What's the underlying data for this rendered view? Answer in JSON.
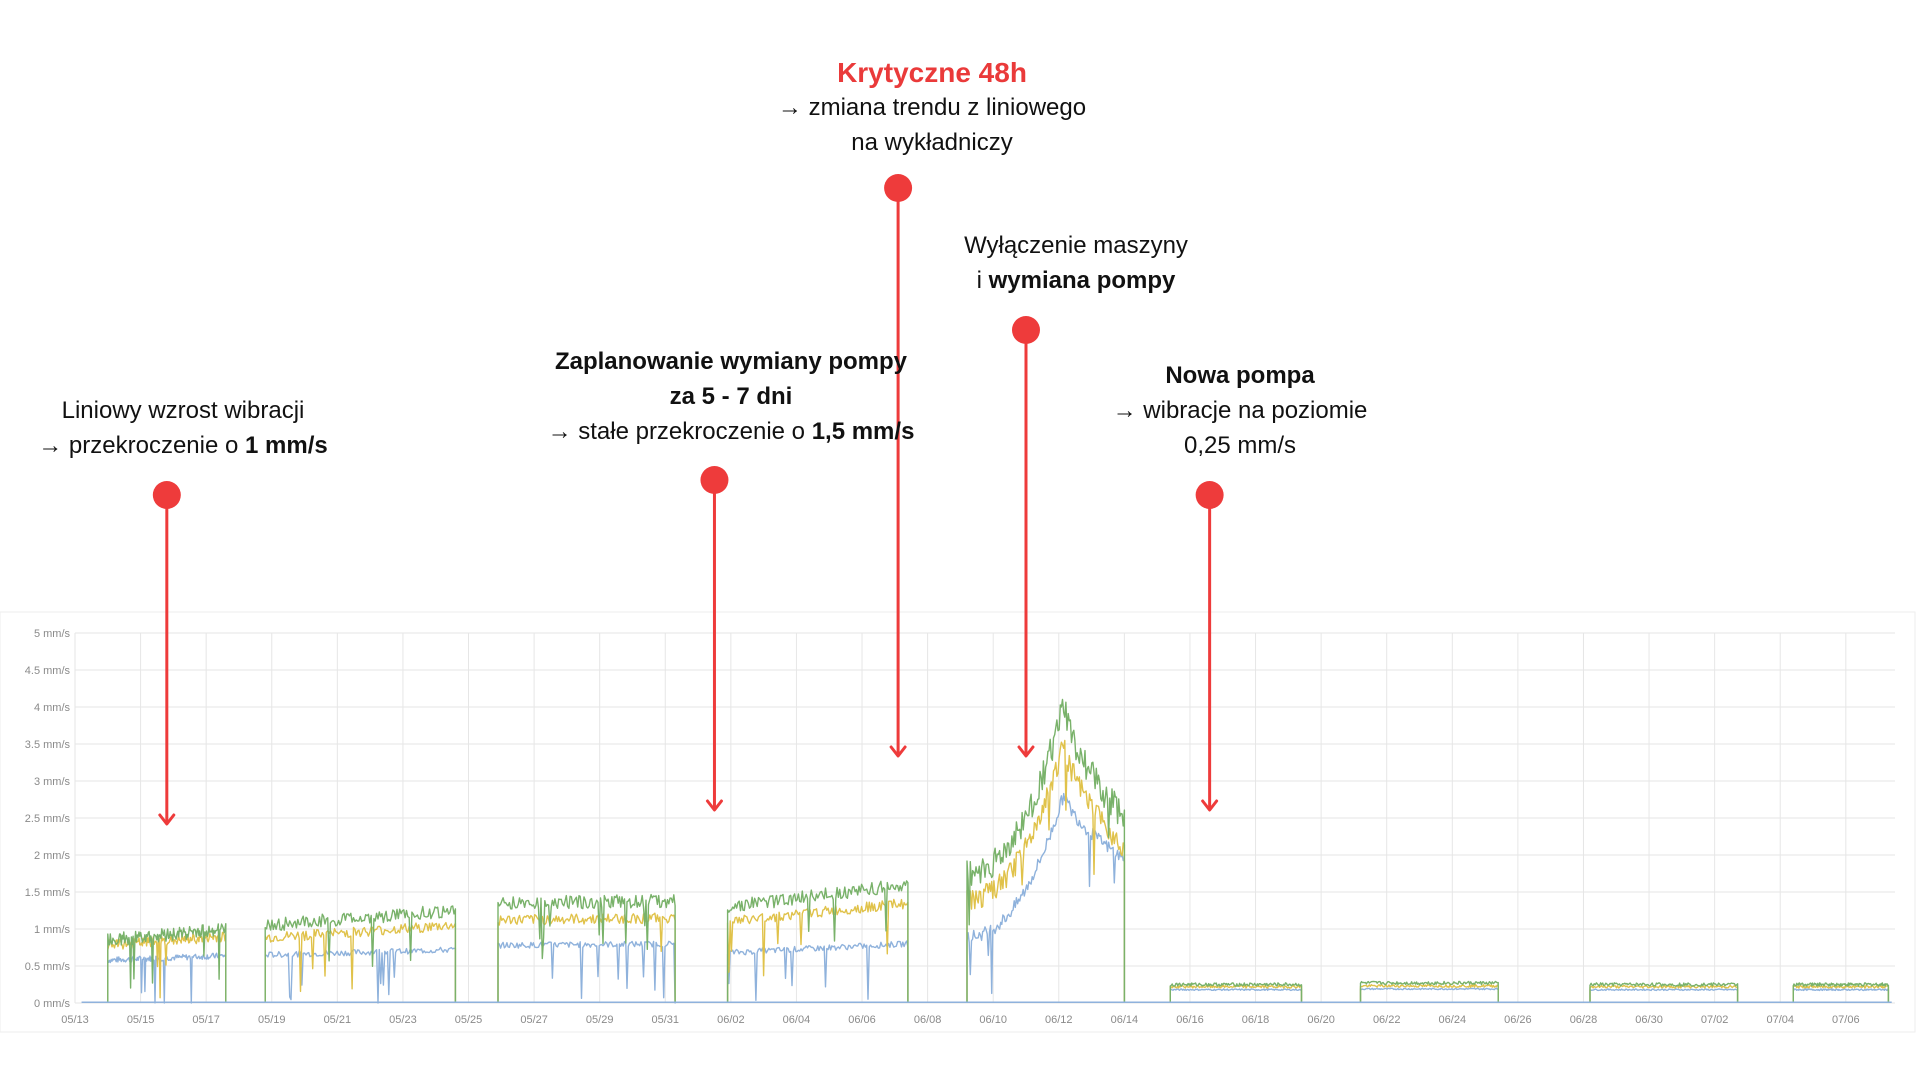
{
  "colors": {
    "accent_red": "#ee3b3b",
    "series_green": "#79b26a",
    "series_yellow": "#e0c24a",
    "series_blue": "#8fb2dc",
    "grid": "#e6e6e6"
  },
  "annotations": [
    {
      "lines": [
        [
          "Liniowy wzrost wibracji"
        ],
        [
          "→  przekroczenie o ",
          "1 mm/s"
        ]
      ]
    },
    {
      "lines": [
        [
          "Zaplanowanie wymiany pompy"
        ],
        [
          "za 5 - 7 dni"
        ],
        [
          "→ stałe przekroczenie o ",
          "1,5 mm/s"
        ]
      ]
    },
    {
      "title": "Krytyczne 48h",
      "lines": [
        [
          "→  zmiana trendu z liniowego"
        ],
        [
          "na wykładniczy"
        ]
      ]
    },
    {
      "lines": [
        [
          "Wyłączenie maszyny"
        ],
        [
          "i ",
          "wymiana pompy"
        ]
      ]
    },
    {
      "lines": [
        [
          "Nowa pompa"
        ],
        [
          "→ wibracje na poziomie"
        ],
        [
          "0,25 mm/s"
        ]
      ]
    }
  ],
  "chart_data": {
    "type": "line",
    "ylim": [
      0,
      5
    ],
    "y_ticks": [
      "0 mm/s",
      "0.5 mm/s",
      "1 mm/s",
      "1.5 mm/s",
      "2 mm/s",
      "2.5 mm/s",
      "3 mm/s",
      "3.5 mm/s",
      "4 mm/s",
      "4.5 mm/s",
      "5 mm/s"
    ],
    "x_ticks": [
      "05/13",
      "05/15",
      "05/17",
      "05/19",
      "05/21",
      "05/23",
      "05/25",
      "05/27",
      "05/29",
      "05/31",
      "06/02",
      "06/04",
      "06/06",
      "06/08",
      "06/10",
      "06/12",
      "06/14",
      "06/16",
      "06/18",
      "06/20",
      "06/22",
      "06/24",
      "06/26",
      "06/28",
      "06/30",
      "07/02",
      "07/04",
      "07/06"
    ],
    "grid": true,
    "x_day_range": [
      0,
      55.5
    ],
    "segments": [
      {
        "start": 1.0,
        "end": 4.6,
        "green": [
          0.85,
          1.0
        ],
        "yellow": [
          0.78,
          0.9
        ],
        "blue": [
          0.58,
          0.64
        ]
      },
      {
        "start": 5.8,
        "end": 11.6,
        "green": [
          1.05,
          1.25
        ],
        "yellow": [
          0.88,
          1.05
        ],
        "blue": [
          0.65,
          0.72
        ]
      },
      {
        "start": 12.9,
        "end": 18.3,
        "green": [
          1.35,
          1.38
        ],
        "yellow": [
          1.12,
          1.15
        ],
        "blue": [
          0.78,
          0.8
        ]
      },
      {
        "start": 19.9,
        "end": 25.4,
        "green": [
          1.3,
          1.6
        ],
        "yellow": [
          1.1,
          1.35
        ],
        "blue": [
          0.68,
          0.8
        ]
      },
      {
        "start": 27.2,
        "end": 32.0,
        "green": [
          1.75,
          4.05,
          2.5
        ],
        "yellow": [
          1.4,
          3.55,
          2.1
        ],
        "blue": [
          0.9,
          2.85,
          1.95
        ]
      },
      {
        "start": 33.4,
        "end": 37.4,
        "green": [
          0.25,
          0.25
        ],
        "yellow": [
          0.22,
          0.22
        ],
        "blue": [
          0.18,
          0.18
        ]
      },
      {
        "start": 39.2,
        "end": 43.4,
        "green": [
          0.27,
          0.27
        ],
        "yellow": [
          0.23,
          0.23
        ],
        "blue": [
          0.19,
          0.19
        ]
      },
      {
        "start": 46.2,
        "end": 50.7,
        "green": [
          0.25,
          0.25
        ],
        "yellow": [
          0.22,
          0.22
        ],
        "blue": [
          0.18,
          0.18
        ]
      },
      {
        "start": 52.4,
        "end": 55.3,
        "green": [
          0.25,
          0.25
        ],
        "yellow": [
          0.22,
          0.22
        ],
        "blue": [
          0.18,
          0.18
        ]
      }
    ],
    "markers_day": [
      2.8,
      19.5,
      25.1,
      29.0,
      34.6
    ]
  }
}
